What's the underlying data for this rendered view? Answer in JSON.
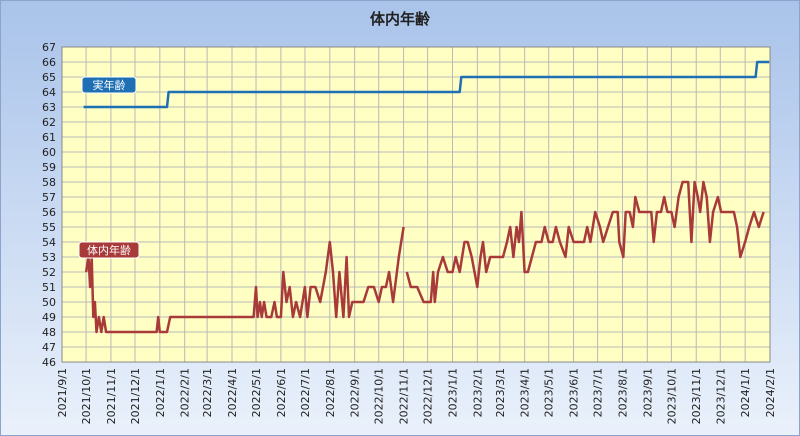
{
  "chart_data": {
    "type": "line",
    "title": "体内年齢",
    "xlim": [
      "2021-09-01",
      "2024-02-01"
    ],
    "xticks": [
      {
        "value": "2021-09-01",
        "label": "2021/9/1"
      },
      {
        "value": "2021-10-01",
        "label": "2021/10/1"
      },
      {
        "value": "2021-11-01",
        "label": "2021/11/1"
      },
      {
        "value": "2021-12-01",
        "label": "2021/12/1"
      },
      {
        "value": "2022-01-01",
        "label": "2022/1/1"
      },
      {
        "value": "2022-02-01",
        "label": "2022/2/1"
      },
      {
        "value": "2022-03-01",
        "label": "2022/3/1"
      },
      {
        "value": "2022-04-01",
        "label": "2022/4/1"
      },
      {
        "value": "2022-05-01",
        "label": "2022/5/1"
      },
      {
        "value": "2022-06-01",
        "label": "2022/6/1"
      },
      {
        "value": "2022-07-01",
        "label": "2022/7/1"
      },
      {
        "value": "2022-08-01",
        "label": "2022/8/1"
      },
      {
        "value": "2022-09-01",
        "label": "2022/9/1"
      },
      {
        "value": "2022-10-01",
        "label": "2022/10/1"
      },
      {
        "value": "2022-11-01",
        "label": "2022/11/1"
      },
      {
        "value": "2022-12-01",
        "label": "2022/12/1"
      },
      {
        "value": "2023-01-01",
        "label": "2023/1/1"
      },
      {
        "value": "2023-02-01",
        "label": "2023/2/1"
      },
      {
        "value": "2023-03-01",
        "label": "2023/3/1"
      },
      {
        "value": "2023-04-01",
        "label": "2023/4/1"
      },
      {
        "value": "2023-05-01",
        "label": "2023/5/1"
      },
      {
        "value": "2023-06-01",
        "label": "2023/6/1"
      },
      {
        "value": "2023-07-01",
        "label": "2023/7/1"
      },
      {
        "value": "2023-08-01",
        "label": "2023/8/1"
      },
      {
        "value": "2023-09-01",
        "label": "2023/9/1"
      },
      {
        "value": "2023-10-01",
        "label": "2023/10/1"
      },
      {
        "value": "2023-11-01",
        "label": "2023/11/1"
      },
      {
        "value": "2023-12-01",
        "label": "2023/12/1"
      },
      {
        "value": "2024-01-01",
        "label": "2024/1/1"
      },
      {
        "value": "2024-02-01",
        "label": "2024/2/1"
      }
    ],
    "ylim": [
      46,
      67
    ],
    "yticks": [
      46,
      47,
      48,
      49,
      50,
      51,
      52,
      53,
      54,
      55,
      56,
      57,
      58,
      59,
      60,
      61,
      62,
      63,
      64,
      65,
      66,
      67
    ],
    "grid": true,
    "series": [
      {
        "name": "実年齢",
        "color": "#1f6fb4",
        "x": [
          "2021-09-28",
          "2022-01-10",
          "2022-01-12",
          "2023-01-10",
          "2023-01-12",
          "2024-01-14",
          "2024-01-16",
          "2024-01-31"
        ],
        "values": [
          63,
          63,
          64,
          64,
          65,
          65,
          66,
          66
        ]
      },
      {
        "name": "体内年齢",
        "color": "#a83a3a",
        "x": [
          "2021-10-01",
          "2021-10-04",
          "2021-10-06",
          "2021-10-08",
          "2021-10-10",
          "2021-10-12",
          "2021-10-14",
          "2021-10-17",
          "2021-10-20",
          "2021-10-23",
          "2021-10-26",
          "2021-12-28",
          "2021-12-30",
          "2022-01-01",
          "2022-01-10",
          "2022-01-14",
          "2022-04-28",
          "2022-05-01",
          "2022-05-03",
          "2022-05-06",
          "2022-05-08",
          "2022-05-11",
          "2022-05-14",
          "2022-05-20",
          "2022-05-24",
          "2022-05-27",
          "2022-06-01",
          "2022-06-04",
          "2022-06-08",
          "2022-06-12",
          "2022-06-16",
          "2022-06-20",
          "2022-06-25",
          "2022-07-01",
          "2022-07-04",
          "2022-07-08",
          "2022-07-14",
          "2022-07-20",
          "2022-07-27",
          "2022-08-01",
          "2022-08-05",
          "2022-08-09",
          "2022-08-13",
          "2022-08-18",
          "2022-08-22",
          "2022-08-25",
          "2022-08-29",
          "2022-09-12",
          "2022-09-18",
          "2022-09-25",
          "2022-10-01",
          "2022-10-05",
          "2022-10-10",
          "2022-10-14",
          "2022-10-19",
          "2022-10-26",
          "2022-11-01",
          "2022-11-03",
          "2022-11-05",
          "2022-11-10",
          "2022-11-18",
          "2022-11-26",
          "2022-12-05",
          "2022-12-08",
          "2022-12-10",
          "2022-12-14",
          "2022-12-20",
          "2022-12-26",
          "2023-01-01",
          "2023-01-05",
          "2023-01-10",
          "2023-01-16",
          "2023-01-20",
          "2023-01-25",
          "2023-02-01",
          "2023-02-05",
          "2023-02-08",
          "2023-02-12",
          "2023-02-17",
          "2023-03-05",
          "2023-03-10",
          "2023-03-14",
          "2023-03-18",
          "2023-03-22",
          "2023-03-25",
          "2023-03-28",
          "2023-04-01",
          "2023-04-05",
          "2023-04-10",
          "2023-04-15",
          "2023-04-22",
          "2023-04-26",
          "2023-05-01",
          "2023-05-06",
          "2023-05-10",
          "2023-05-15",
          "2023-05-22",
          "2023-05-26",
          "2023-06-01",
          "2023-06-14",
          "2023-06-18",
          "2023-06-22",
          "2023-06-28",
          "2023-07-04",
          "2023-07-08",
          "2023-07-14",
          "2023-07-20",
          "2023-07-26",
          "2023-07-28",
          "2023-08-02",
          "2023-08-05",
          "2023-08-10",
          "2023-08-14",
          "2023-08-17",
          "2023-08-22",
          "2023-09-06",
          "2023-09-09",
          "2023-09-13",
          "2023-09-18",
          "2023-09-22",
          "2023-09-26",
          "2023-10-01",
          "2023-10-05",
          "2023-10-10",
          "2023-10-15",
          "2023-10-22",
          "2023-10-26",
          "2023-10-30",
          "2023-11-03",
          "2023-11-06",
          "2023-11-10",
          "2023-11-14",
          "2023-11-18",
          "2023-11-22",
          "2023-11-28",
          "2023-12-02",
          "2023-12-18",
          "2023-12-22",
          "2023-12-26",
          "2024-01-01",
          "2024-01-06",
          "2024-01-12",
          "2024-01-18",
          "2024-01-24"
        ],
        "values": [
          52,
          53,
          51,
          53,
          49,
          50,
          48,
          49,
          48,
          49,
          48,
          48,
          49,
          48,
          48,
          49,
          49,
          51,
          49,
          50,
          49,
          50,
          49,
          49,
          50,
          49,
          49,
          52,
          50,
          51,
          49,
          50,
          49,
          51,
          49,
          51,
          51,
          50,
          52,
          54,
          52,
          49,
          52,
          49,
          53,
          49,
          50,
          50,
          51,
          51,
          50,
          51,
          51,
          52,
          50,
          53,
          55,
          null,
          52,
          51,
          51,
          50,
          50,
          52,
          50,
          52,
          53,
          52,
          52,
          53,
          52,
          54,
          54,
          53,
          51,
          53,
          54,
          52,
          53,
          53,
          54,
          55,
          53,
          55,
          54,
          56,
          52,
          52,
          53,
          54,
          54,
          55,
          54,
          54,
          55,
          54,
          53,
          55,
          54,
          54,
          55,
          54,
          56,
          55,
          54,
          55,
          56,
          56,
          54,
          53,
          56,
          56,
          55,
          57,
          56,
          56,
          54,
          56,
          56,
          57,
          56,
          56,
          55,
          57,
          58,
          58,
          54,
          58,
          57,
          56,
          58,
          57,
          54,
          56,
          57,
          56,
          56,
          55,
          53,
          54,
          55,
          56,
          55,
          56
        ]
      }
    ]
  }
}
